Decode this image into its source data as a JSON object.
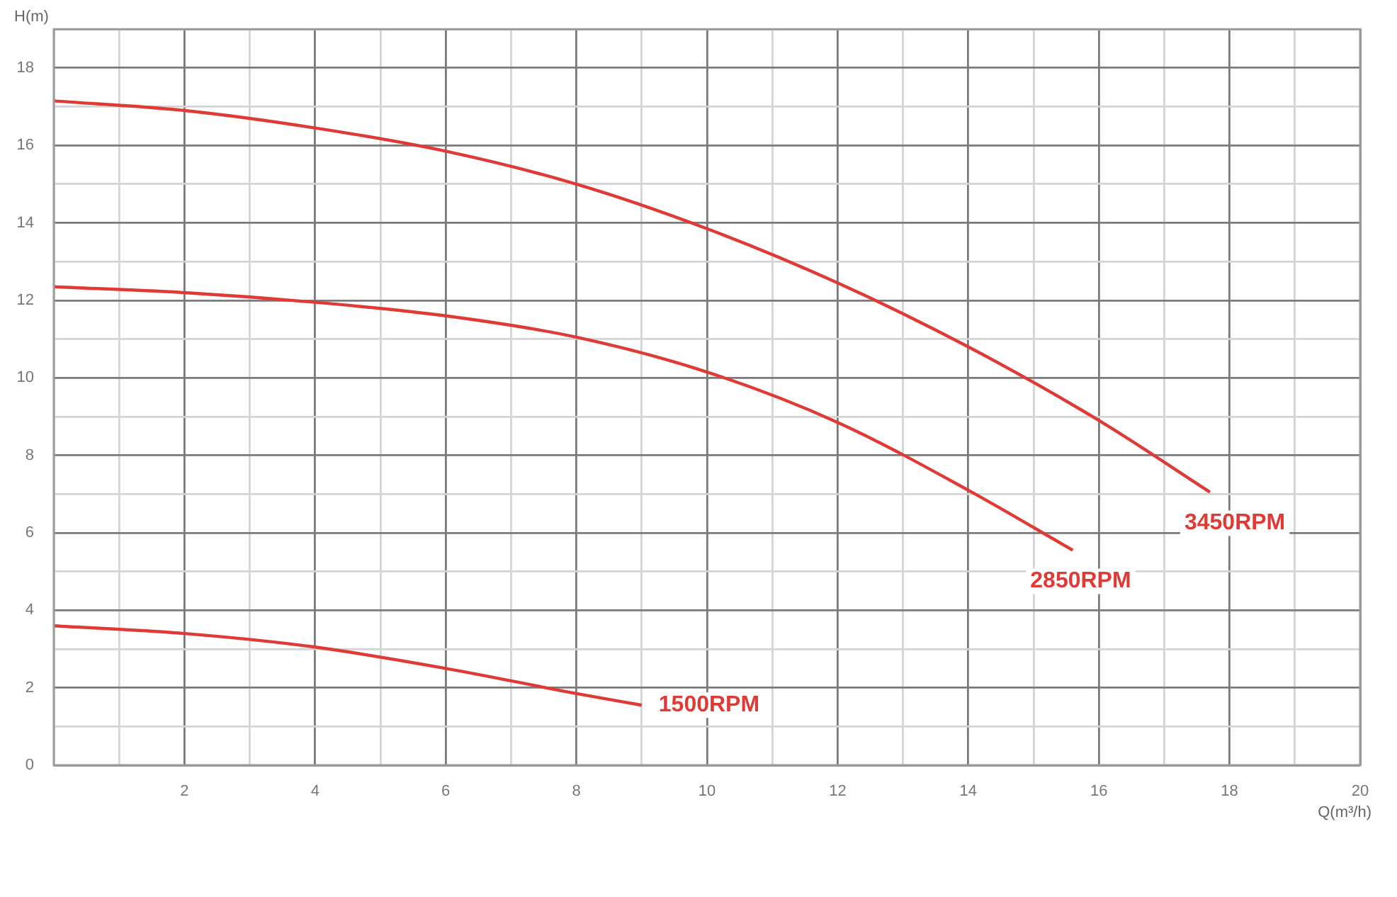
{
  "chart_data": {
    "type": "line",
    "xlabel": "Q(m³/h)",
    "ylabel": "H(m)",
    "xlim": [
      0,
      20
    ],
    "ylim": [
      0,
      19
    ],
    "xticks": [
      {
        "value": 0,
        "label": null
      },
      {
        "value": 1,
        "label": null
      },
      2,
      {
        "value": 3,
        "label": null
      },
      4,
      {
        "value": 5,
        "label": null
      },
      6,
      {
        "value": 7,
        "label": null
      },
      8,
      {
        "value": 9,
        "label": null
      },
      10,
      {
        "value": 11,
        "label": null
      },
      12,
      {
        "value": 13,
        "label": null
      },
      14,
      {
        "value": 15,
        "label": null
      },
      16,
      {
        "value": 17,
        "label": null
      },
      18,
      {
        "value": 19,
        "label": null
      },
      20
    ],
    "yticks": [
      0,
      {
        "value": 1,
        "label": null
      },
      2,
      {
        "value": 3,
        "label": null
      },
      4,
      {
        "value": 5,
        "label": null
      },
      6,
      {
        "value": 7,
        "label": null
      },
      8,
      {
        "value": 9,
        "label": null
      },
      10,
      {
        "value": 11,
        "label": null
      },
      12,
      {
        "value": 13,
        "label": null
      },
      14,
      {
        "value": 15,
        "label": null
      },
      16,
      {
        "value": 17,
        "label": null
      },
      18,
      {
        "value": 19,
        "label": null
      }
    ],
    "grid": true,
    "legend": false,
    "marker": "none",
    "line_style": "solid",
    "series": [
      {
        "name": "3450RPM",
        "color": "#e03a36",
        "x": [
          0,
          2,
          4,
          6,
          8,
          10,
          12,
          14,
          16,
          17.7
        ],
        "values": [
          17.15,
          16.9,
          16.45,
          15.85,
          15.0,
          13.85,
          12.45,
          10.8,
          8.9,
          7.05
        ]
      },
      {
        "name": "2850RPM",
        "color": "#e03a36",
        "x": [
          0,
          2,
          4,
          6,
          8,
          10,
          12,
          14,
          15.6
        ],
        "values": [
          12.35,
          12.2,
          11.95,
          11.6,
          11.05,
          10.15,
          8.85,
          7.1,
          5.55
        ]
      },
      {
        "name": "1500RPM",
        "color": "#e03a36",
        "x": [
          0,
          2,
          4,
          6,
          8,
          9
        ],
        "values": [
          3.6,
          3.4,
          3.05,
          2.5,
          1.85,
          1.55
        ]
      }
    ]
  }
}
